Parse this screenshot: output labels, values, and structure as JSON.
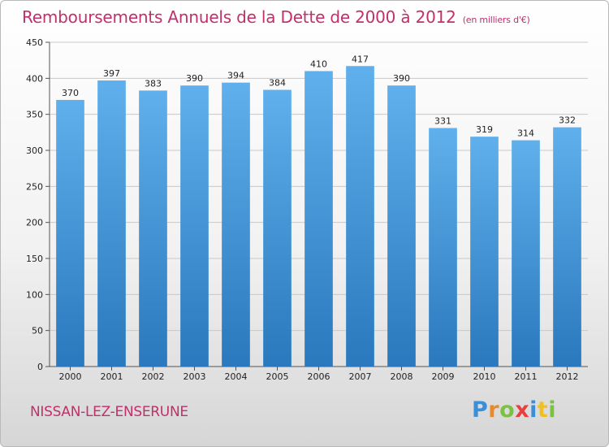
{
  "header": {
    "title": "Remboursements Annuels de la Dette de 2000 à 2012",
    "unit": "(en milliers d'€)"
  },
  "footer": {
    "commune": "NISSAN-LEZ-ENSERUNE",
    "logo": "Proxiti",
    "logo_letters": [
      {
        "char": "P",
        "color": "#3b8ed8"
      },
      {
        "char": "r",
        "color": "#e8892a"
      },
      {
        "char": "o",
        "color": "#7cc242"
      },
      {
        "char": "x",
        "color": "#e83f3f"
      },
      {
        "char": "i",
        "color": "#3b8ed8"
      },
      {
        "char": "t",
        "color": "#f0c020"
      },
      {
        "char": "i",
        "color": "#7cc242"
      }
    ]
  },
  "colors": {
    "title": "#c0306a",
    "bar_top": "#5fb0ec",
    "bar_bottom": "#2a78bd",
    "grid": "#c9c9c9"
  },
  "chart_data": {
    "type": "bar",
    "title": "Remboursements Annuels de la Dette de 2000 à 2012",
    "subtitle": "(en milliers d'€)",
    "categories": [
      "2000",
      "2001",
      "2002",
      "2003",
      "2004",
      "2005",
      "2006",
      "2007",
      "2008",
      "2009",
      "2010",
      "2011",
      "2012"
    ],
    "values": [
      370,
      397,
      383,
      390,
      394,
      384,
      410,
      417,
      390,
      331,
      319,
      314,
      332
    ],
    "ylim": [
      0,
      450
    ],
    "yticks": [
      0,
      50,
      100,
      150,
      200,
      250,
      300,
      350,
      400,
      450
    ],
    "grid": true,
    "legend": "none"
  }
}
